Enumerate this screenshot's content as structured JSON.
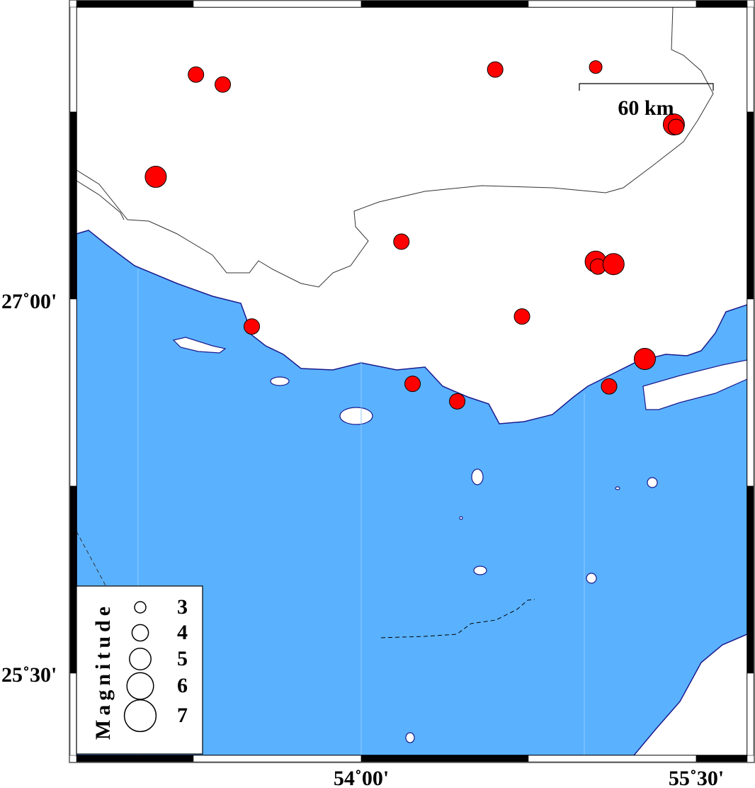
{
  "map": {
    "x_ticks": [
      {
        "lon": 54.0,
        "label": "54˚00'"
      },
      {
        "lon": 55.5,
        "label": "55˚30'"
      }
    ],
    "y_ticks": [
      {
        "lat": 27.0,
        "label": "27˚00'"
      },
      {
        "lat": 25.5,
        "label": "25˚30'"
      }
    ],
    "scale_bar_label": "60 km",
    "colors": {
      "sea": "#5ab2ff",
      "land": "#ffffff",
      "event": "#ff0000",
      "coast": "#1a1a8c"
    }
  },
  "legend": {
    "title": "Magnitude",
    "items": [
      {
        "mag": 3,
        "label": "3"
      },
      {
        "mag": 4,
        "label": "4"
      },
      {
        "mag": 5,
        "label": "5"
      },
      {
        "mag": 6,
        "label": "6"
      },
      {
        "mag": 7,
        "label": "7"
      }
    ]
  },
  "events": [
    {
      "lon": 53.26,
      "lat": 27.9,
      "mag": 3
    },
    {
      "lon": 53.38,
      "lat": 27.86,
      "mag": 3
    },
    {
      "lon": 54.6,
      "lat": 27.92,
      "mag": 3
    },
    {
      "lon": 55.05,
      "lat": 27.93,
      "mag": 2.7
    },
    {
      "lon": 55.4,
      "lat": 27.7,
      "mag": 4
    },
    {
      "lon": 55.41,
      "lat": 27.69,
      "mag": 3
    },
    {
      "lon": 53.08,
      "lat": 27.49,
      "mag": 4
    },
    {
      "lon": 54.18,
      "lat": 27.23,
      "mag": 3
    },
    {
      "lon": 55.05,
      "lat": 27.15,
      "mag": 4
    },
    {
      "lon": 55.06,
      "lat": 27.13,
      "mag": 3
    },
    {
      "lon": 55.13,
      "lat": 27.14,
      "mag": 4
    },
    {
      "lon": 54.72,
      "lat": 26.93,
      "mag": 3
    },
    {
      "lon": 53.51,
      "lat": 26.89,
      "mag": 3
    },
    {
      "lon": 55.27,
      "lat": 26.76,
      "mag": 4
    },
    {
      "lon": 54.23,
      "lat": 26.66,
      "mag": 3
    },
    {
      "lon": 54.43,
      "lat": 26.59,
      "mag": 3
    },
    {
      "lon": 55.11,
      "lat": 26.65,
      "mag": 3
    }
  ]
}
